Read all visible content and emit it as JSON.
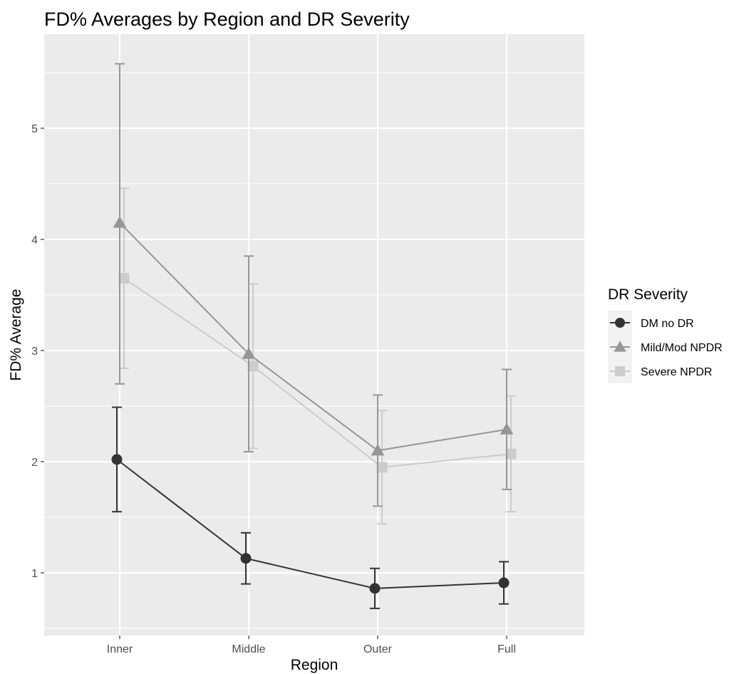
{
  "chart_data": {
    "type": "line",
    "title": "FD% Averages by Region and DR Severity",
    "xlabel": "Region",
    "ylabel": "FD% Average",
    "categories": [
      "Inner",
      "Middle",
      "Outer",
      "Full"
    ],
    "yticks": [
      1,
      2,
      3,
      4,
      5
    ],
    "ylim": [
      0.45,
      5.8
    ],
    "grid": true,
    "legend": {
      "title": "DR Severity",
      "position": "right"
    },
    "series": [
      {
        "name": "DM no DR",
        "marker": "circle",
        "color": "#333333",
        "values": [
          2.02,
          1.13,
          0.86,
          0.91
        ],
        "error_low": [
          1.55,
          0.9,
          0.68,
          0.72
        ],
        "error_high": [
          2.49,
          1.36,
          1.04,
          1.1
        ]
      },
      {
        "name": "Mild/Mod NPDR",
        "marker": "triangle",
        "color": "#969696",
        "values": [
          4.15,
          2.97,
          2.1,
          2.29
        ],
        "error_low": [
          2.7,
          2.09,
          1.6,
          1.75
        ],
        "error_high": [
          5.58,
          3.85,
          2.6,
          2.83
        ]
      },
      {
        "name": "Severe NPDR",
        "marker": "square",
        "color": "#cccccc",
        "values": [
          3.65,
          2.86,
          1.95,
          2.07
        ],
        "error_low": [
          2.84,
          2.12,
          1.44,
          1.55
        ],
        "error_high": [
          4.46,
          3.6,
          2.46,
          2.59
        ]
      }
    ]
  }
}
